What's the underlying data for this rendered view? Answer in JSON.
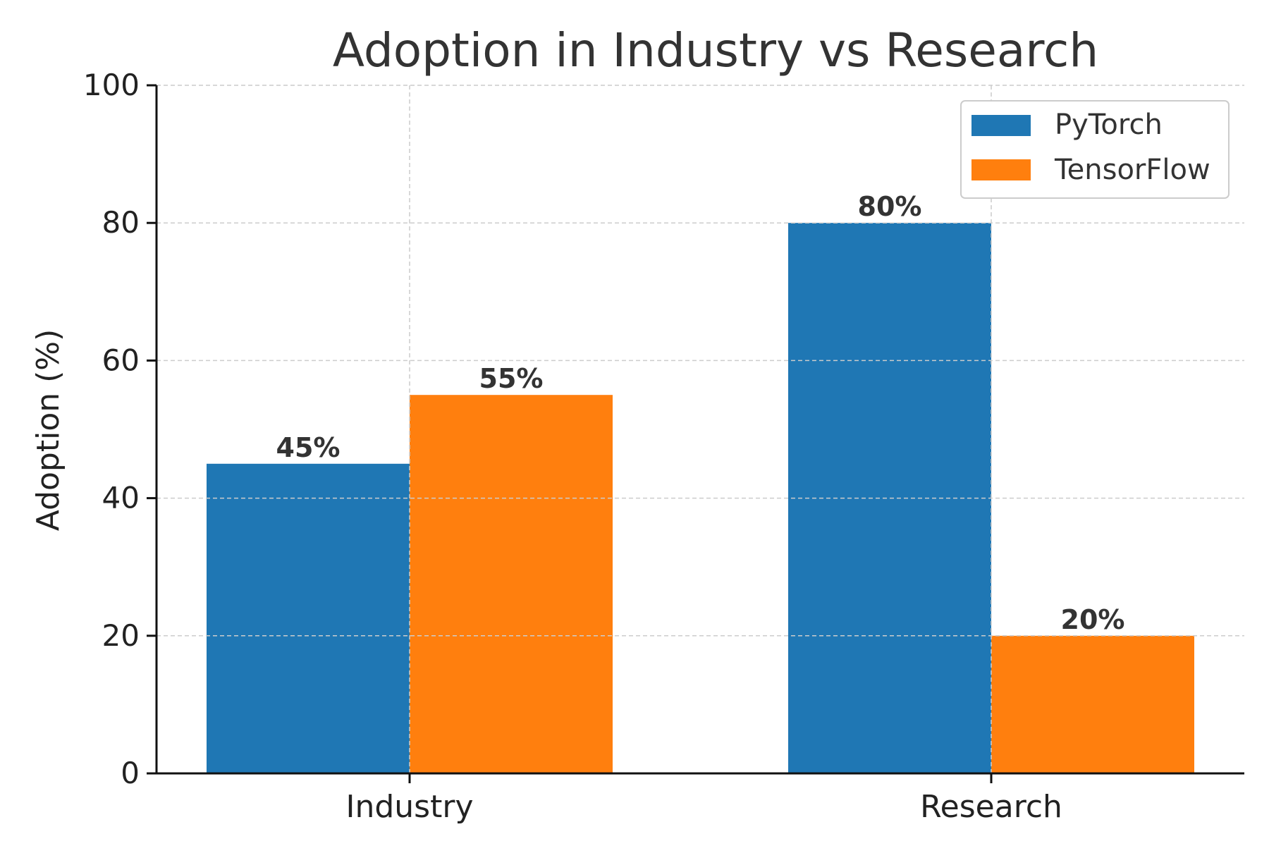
{
  "chart_data": {
    "type": "bar",
    "title": "Adoption in Industry vs Research",
    "xlabel": "",
    "ylabel": "Adoption (%)",
    "ylim": [
      0,
      100
    ],
    "yticks": [
      0,
      20,
      40,
      60,
      80,
      100
    ],
    "categories": [
      "Industry",
      "Research"
    ],
    "series": [
      {
        "name": "PyTorch",
        "values": [
          45,
          80
        ],
        "color": "#1f77b4",
        "labels": [
          "45%",
          "80%"
        ]
      },
      {
        "name": "TensorFlow",
        "values": [
          55,
          20
        ],
        "color": "#ff7f0e",
        "labels": [
          "55%",
          "20%"
        ]
      }
    ],
    "grid": true,
    "legend_position": "top-right"
  }
}
